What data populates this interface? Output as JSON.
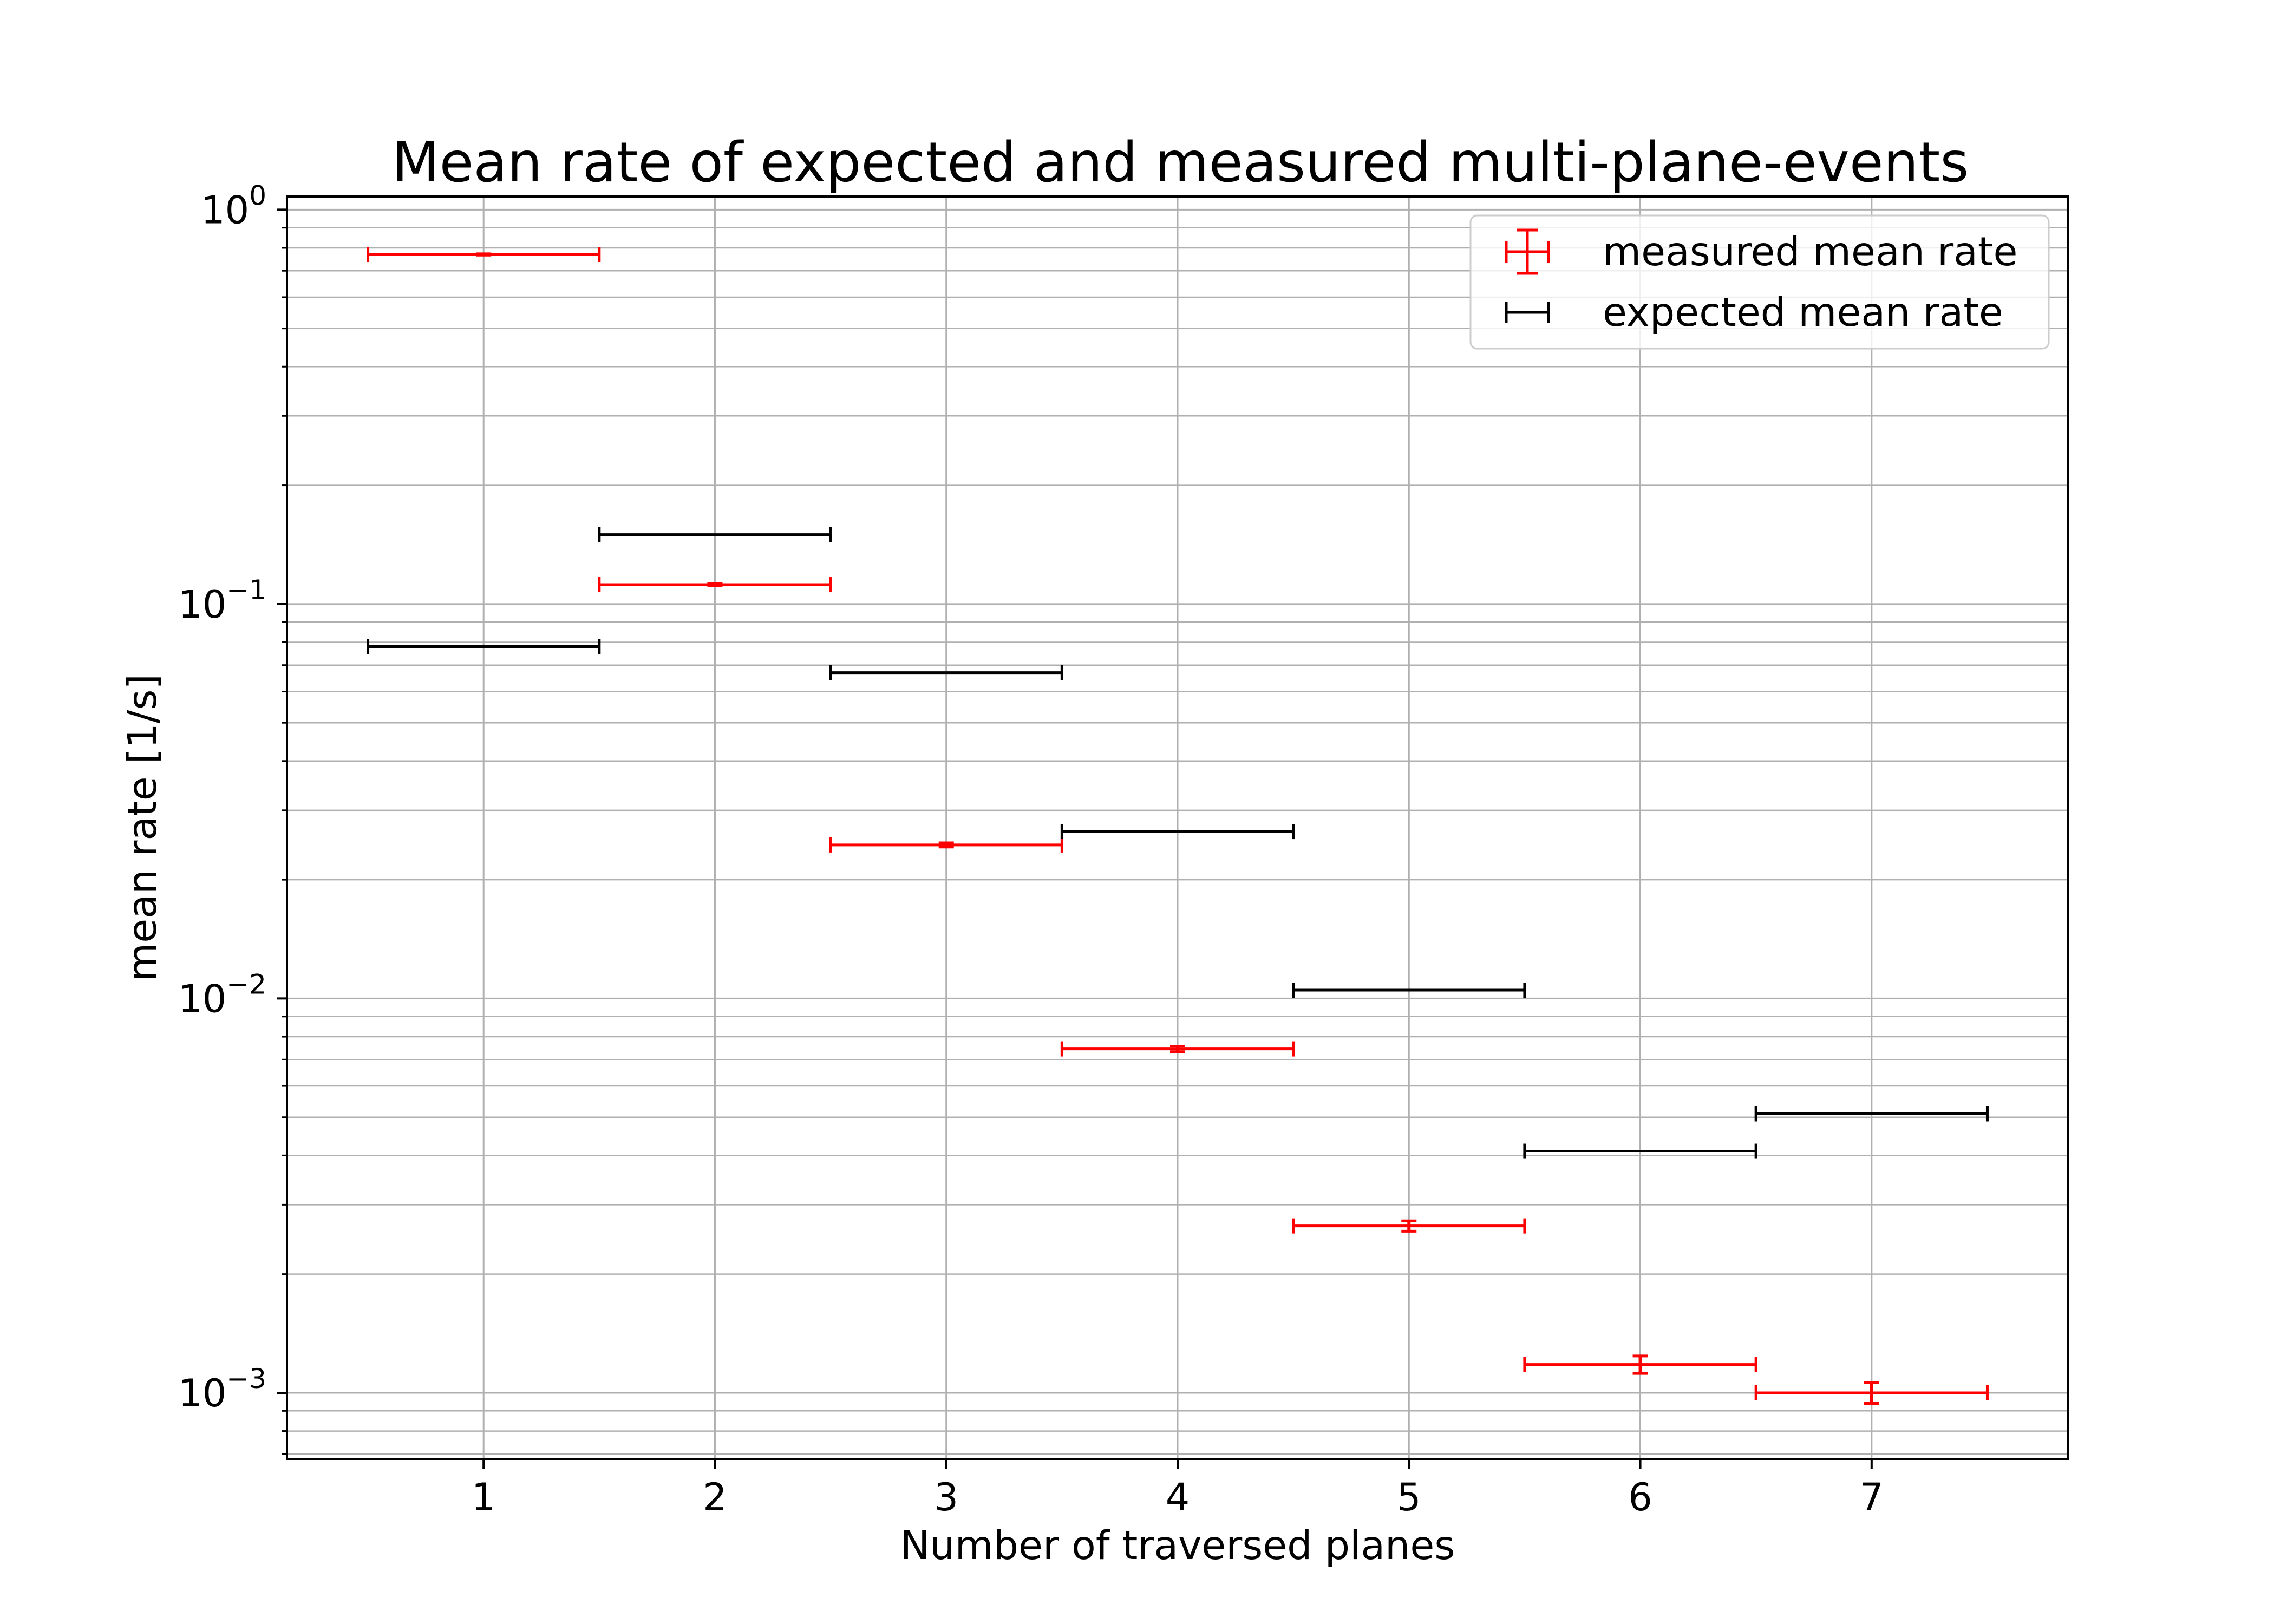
{
  "chart_data": {
    "type": "scatter",
    "title": "Mean rate of expected and measured multi-plane-events",
    "xlabel": "Number of traversed planes",
    "ylabel": "mean rate [1/s]",
    "xlim": [
      0.15,
      7.85
    ],
    "ylim": [
      0.00068,
      1.08
    ],
    "yscale": "log",
    "grid": true,
    "grid_minor_y": true,
    "legend_position": "top-right",
    "x_ticks": [
      1,
      2,
      3,
      4,
      5,
      6,
      7
    ],
    "y_ticks": [
      {
        "value": 1,
        "base": "10",
        "exp": "0"
      },
      {
        "value": 0.1,
        "base": "10",
        "exp": "−1"
      },
      {
        "value": 0.01,
        "base": "10",
        "exp": "−2"
      },
      {
        "value": 0.001,
        "base": "10",
        "exp": "−3"
      }
    ],
    "series": [
      {
        "name": "measured mean rate",
        "color": "#ff0000",
        "x": [
          1,
          2,
          3,
          4,
          5,
          6,
          7
        ],
        "y": [
          0.77,
          0.112,
          0.0245,
          0.00745,
          0.00265,
          0.00118,
          0.001
        ],
        "x_err": 0.5,
        "y_err": [
          0.003,
          0.0008,
          0.0003,
          0.00012,
          8e-05,
          6e-05,
          6e-05
        ]
      },
      {
        "name": "expected mean rate",
        "color": "#000000",
        "x": [
          1,
          2,
          3,
          4,
          5,
          6,
          7
        ],
        "y": [
          0.078,
          0.15,
          0.067,
          0.0265,
          0.0105,
          0.0041,
          0.0051
        ],
        "x_err": 0.5,
        "y_err": null
      }
    ]
  }
}
